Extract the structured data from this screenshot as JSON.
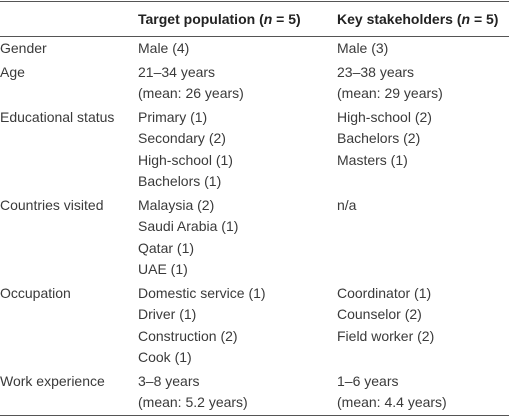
{
  "table": {
    "columns": [
      {
        "parts": [
          "Target population (",
          "n",
          " = 5)"
        ]
      },
      {
        "parts": [
          "Key stakeholders (",
          "n",
          " = 5)"
        ]
      }
    ],
    "rows": [
      {
        "label": "Gender",
        "cells": [
          [
            "Male (4)"
          ],
          [
            "Male (3)"
          ]
        ]
      },
      {
        "label": "Age",
        "cells": [
          [
            "21–34 years",
            "(mean: 26 years)"
          ],
          [
            "23–38 years",
            "(mean: 29 years)"
          ]
        ]
      },
      {
        "label": "Educational status",
        "cells": [
          [
            "Primary (1)",
            "Secondary (2)",
            "High-school (1)",
            "Bachelors (1)"
          ],
          [
            "High-school (2)",
            "Bachelors (2)",
            "Masters (1)"
          ]
        ]
      },
      {
        "label": "Countries visited",
        "cells": [
          [
            "Malaysia (2)",
            "Saudi Arabia (1)",
            "Qatar (1)",
            "UAE (1)"
          ],
          [
            "n/a"
          ]
        ]
      },
      {
        "label": "Occupation",
        "cells": [
          [
            "Domestic service (1)",
            "Driver (1)",
            "Construction (2)",
            "Cook (1)"
          ],
          [
            "Coordinator (1)",
            "Counselor (2)",
            "Field worker (2)"
          ]
        ]
      },
      {
        "label": "Work experience",
        "cells": [
          [
            "3–8 years",
            "(mean: 5.2 years)"
          ],
          [
            "1–6 years",
            "(mean: 4.4 years)"
          ]
        ]
      }
    ]
  }
}
